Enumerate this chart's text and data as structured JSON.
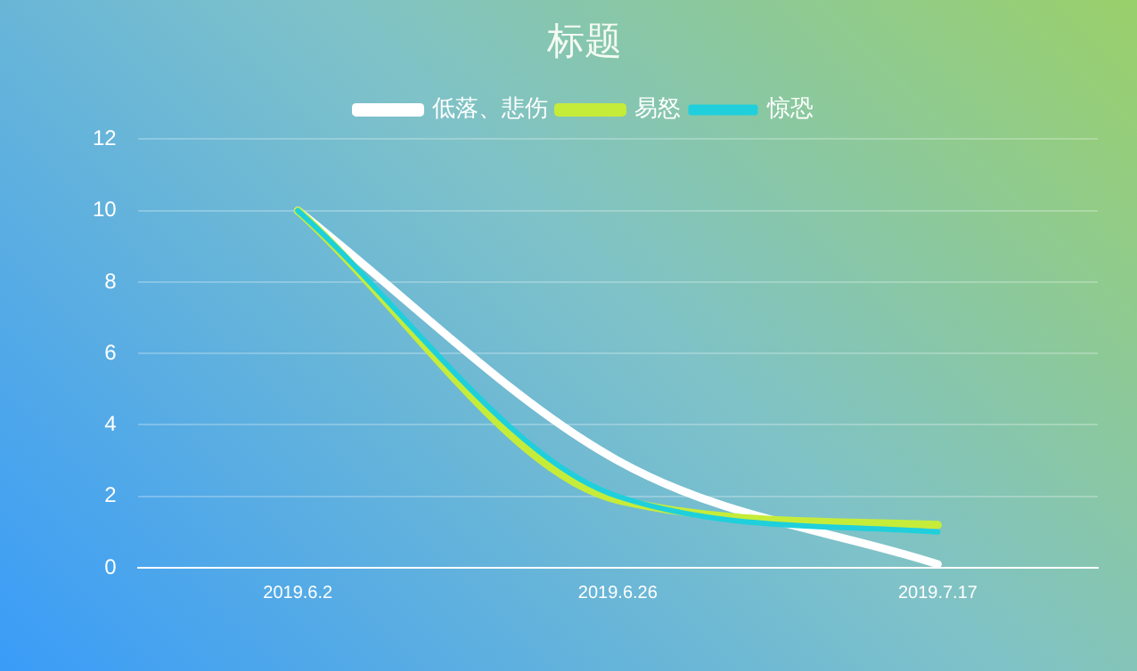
{
  "chart_data": {
    "type": "line",
    "title": "标题",
    "categories": [
      "2019.6.2",
      "2019.6.26",
      "2019.7.17"
    ],
    "series": [
      {
        "name": "低落、悲伤",
        "color": "#ffffff",
        "values": [
          10,
          3,
          0.1
        ]
      },
      {
        "name": "易怒",
        "color": "#c6ec3a",
        "values": [
          10,
          1.9,
          1.2
        ]
      },
      {
        "name": "惊恐",
        "color": "#1fd0dc",
        "values": [
          10,
          2,
          1
        ]
      }
    ],
    "ylim": [
      0,
      12
    ],
    "yticks": [
      0,
      2,
      4,
      6,
      8,
      10,
      12
    ],
    "grid": "y",
    "legend": "top",
    "marker": "none",
    "line_style": "solid"
  }
}
